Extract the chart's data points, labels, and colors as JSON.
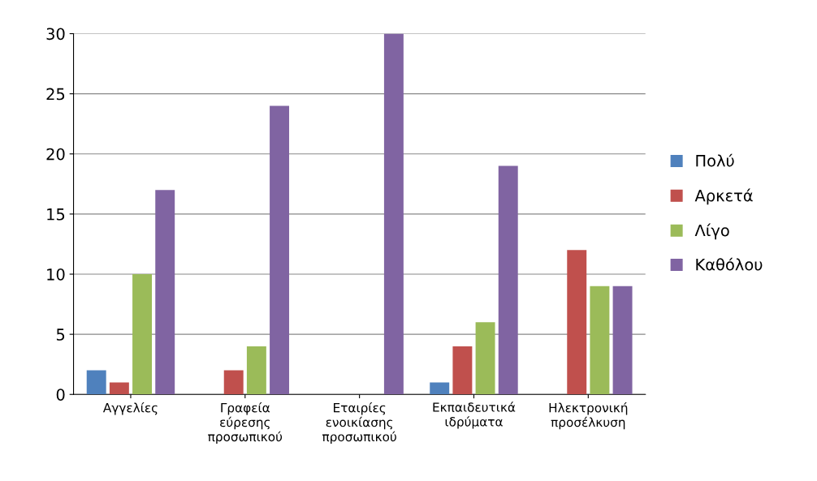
{
  "chart_data": {
    "type": "bar",
    "categories": [
      "Αγγελίες",
      "Γραφεία\nεύρεσης\nπροσωπικού",
      "Εταιρίες\nενοικίασης\nπροσωπικού",
      "Εκπαιδευτικά\nιδρύματα",
      "Ηλεκτρονική\nπροσέλκυση"
    ],
    "series": [
      {
        "name": "Πολύ",
        "color": "#4f81bd",
        "values": [
          2,
          0,
          0,
          1,
          0
        ]
      },
      {
        "name": "Αρκετά",
        "color": "#c0504d",
        "values": [
          1,
          2,
          0,
          4,
          12
        ]
      },
      {
        "name": "Λίγο",
        "color": "#9bbb59",
        "values": [
          10,
          4,
          0,
          6,
          9
        ]
      },
      {
        "name": "Καθόλου",
        "color": "#8064a2",
        "values": [
          17,
          24,
          30,
          19,
          9
        ]
      }
    ],
    "ylim": [
      0,
      30
    ],
    "yticks": [
      0,
      5,
      10,
      15,
      20,
      25,
      30
    ],
    "grid": "y",
    "legend": "right"
  }
}
